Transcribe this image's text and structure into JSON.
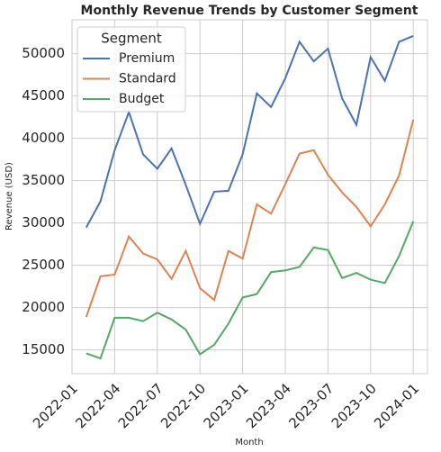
{
  "chart_data": {
    "type": "line",
    "title": "Monthly Revenue Trends by Customer Segment",
    "x_label": "Month",
    "y_label": "Revenue (USD)",
    "legend_title": "Segment",
    "legend": "upper left",
    "grid": true,
    "x": [
      "2022-02",
      "2022-03",
      "2022-04",
      "2022-05",
      "2022-06",
      "2022-07",
      "2022-08",
      "2022-09",
      "2022-10",
      "2022-11",
      "2022-12",
      "2023-01",
      "2023-02",
      "2023-03",
      "2023-04",
      "2023-05",
      "2023-06",
      "2023-07",
      "2023-08",
      "2023-09",
      "2023-10",
      "2023-11",
      "2023-12",
      "2024-01"
    ],
    "series": [
      {
        "name": "Premium",
        "color": "#4c72b0",
        "values": [
          29470,
          32550,
          38600,
          43100,
          38100,
          36400,
          38800,
          34500,
          29900,
          33700,
          33800,
          38100,
          45300,
          43700,
          47100,
          51400,
          49100,
          50600,
          44700,
          41600,
          49600,
          46800,
          51400,
          52100
        ]
      },
      {
        "name": "Standard",
        "color": "#dd8452",
        "values": [
          18900,
          23700,
          23900,
          28400,
          26400,
          25700,
          23400,
          26700,
          22300,
          20900,
          26700,
          25800,
          32200,
          31100,
          34600,
          38200,
          38600,
          35700,
          33600,
          31900,
          29600,
          32200,
          35600,
          42200
        ]
      },
      {
        "name": "Budget",
        "color": "#55a868",
        "values": [
          14600,
          14000,
          18800,
          18800,
          18400,
          19400,
          18600,
          17400,
          14500,
          15600,
          18100,
          21200,
          21600,
          24200,
          24400,
          24800,
          27100,
          26800,
          23500,
          24100,
          23300,
          22900,
          26100,
          30200
        ]
      }
    ],
    "xlim": [
      "2022-01",
      "2024-02"
    ],
    "xticks": [
      "2022-01",
      "2022-04",
      "2022-07",
      "2022-10",
      "2023-01",
      "2023-04",
      "2023-07",
      "2023-10",
      "2024-01"
    ],
    "ylim": [
      12200,
      54000
    ],
    "yticks": [
      15000,
      20000,
      25000,
      30000,
      35000,
      40000,
      45000,
      50000
    ]
  }
}
